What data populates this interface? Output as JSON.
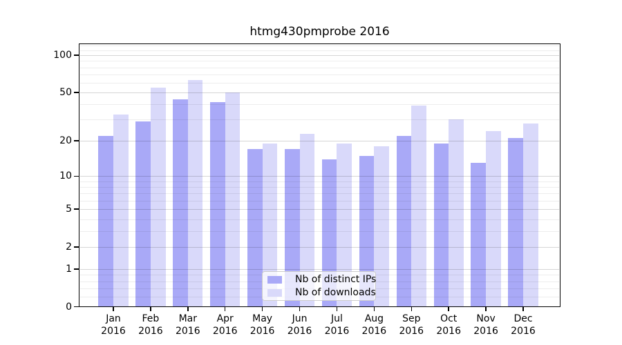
{
  "chart_data": {
    "type": "bar",
    "title": "htmg430pmprobe 2016",
    "categories": [
      "Jan",
      "Feb",
      "Mar",
      "Apr",
      "May",
      "Jun",
      "Jul",
      "Aug",
      "Sep",
      "Oct",
      "Nov",
      "Dec"
    ],
    "category_year": "2016",
    "series": [
      {
        "name": "Nb of distinct IPs",
        "color": "#a9a9f7",
        "values": [
          22,
          29,
          44,
          42,
          17,
          17,
          14,
          15,
          22,
          19,
          13,
          21
        ]
      },
      {
        "name": "Nb of downloads",
        "color": "#d9d9fa",
        "values": [
          33,
          55,
          63,
          50,
          19,
          23,
          19,
          18,
          39,
          30,
          24,
          28
        ]
      }
    ],
    "yscale": "log1p",
    "ylim": [
      0,
      122
    ],
    "y_ticks": [
      0,
      1,
      2,
      5,
      10,
      20,
      50,
      100
    ],
    "y_minor_gridlines": [
      0.2,
      0.4,
      0.6,
      0.8,
      3,
      4,
      6,
      7,
      8,
      9,
      30,
      40,
      60,
      70,
      80,
      90,
      110,
      120
    ],
    "grid": true,
    "legend_position": "lower center"
  },
  "colors": {
    "axis": "#000000",
    "background": "#ffffff",
    "legend_border": "#cccccc"
  }
}
